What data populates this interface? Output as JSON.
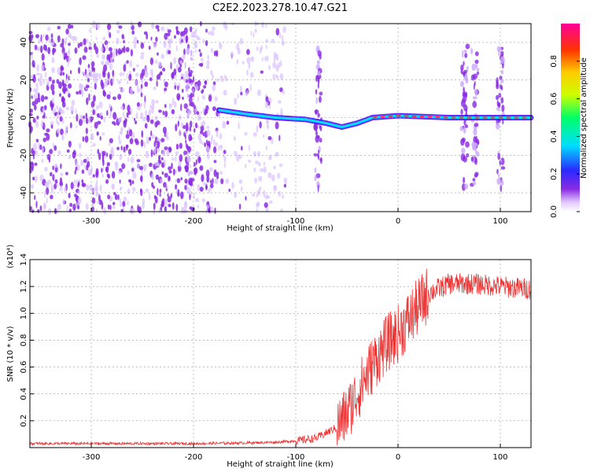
{
  "figure": {
    "title": "C2E2.2023.278.10.47.G21"
  },
  "chart_data": [
    {
      "type": "heatmap",
      "xlabel": "Height of straight line (km)",
      "ylabel": "Frequency (Hz)",
      "xlim": [
        -360,
        130
      ],
      "ylim": [
        -50,
        50
      ],
      "xticks": [
        -300,
        -200,
        -100,
        0,
        100
      ],
      "yticks": [
        -40,
        -20,
        0,
        20,
        40
      ],
      "grid": true,
      "colorbar": {
        "label": "Normalized spectral amplitude",
        "range": [
          0.0,
          1.0
        ],
        "ticks": [
          0.0,
          0.2,
          0.4,
          0.6,
          0.8
        ]
      },
      "features": {
        "noise_region_x": [
          -360,
          -110
        ],
        "dense_noise_x": [
          -360,
          -175
        ],
        "carrier_line": [
          {
            "x": -175,
            "y": 4
          },
          {
            "x": -150,
            "y": 2
          },
          {
            "x": -120,
            "y": 0
          },
          {
            "x": -90,
            "y": -1
          },
          {
            "x": -70,
            "y": -3
          },
          {
            "x": -55,
            "y": -5
          },
          {
            "x": -40,
            "y": -3
          },
          {
            "x": -25,
            "y": 0
          },
          {
            "x": 0,
            "y": 1
          },
          {
            "x": 50,
            "y": 0
          },
          {
            "x": 130,
            "y": 0
          }
        ],
        "vertical_bands_x": [
          -205,
          -78,
          65,
          75,
          100
        ]
      }
    },
    {
      "type": "line",
      "xlabel": "Height of straight line (km)",
      "ylabel": "SNR (10 * v/v)",
      "yscale_label": "(x10⁴)",
      "xlim": [
        -360,
        130
      ],
      "ylim": [
        0,
        1.4
      ],
      "xticks": [
        -300,
        -200,
        -100,
        0,
        100
      ],
      "yticks": [
        0.2,
        0.4,
        0.6,
        0.8,
        1.0,
        1.2,
        1.4
      ],
      "grid": true,
      "color": "#ee3333",
      "series": [
        {
          "x": [
            -360,
            -300,
            -200,
            -150,
            -120,
            -100,
            -80,
            -60,
            -50,
            -40,
            -30,
            -20,
            -10,
            0,
            10,
            20,
            30,
            50,
            75,
            100,
            130
          ],
          "values": [
            0.03,
            0.03,
            0.03,
            0.035,
            0.04,
            0.05,
            0.07,
            0.15,
            0.25,
            0.4,
            0.55,
            0.68,
            0.78,
            0.85,
            0.95,
            1.05,
            1.15,
            1.22,
            1.22,
            1.2,
            1.18
          ]
        }
      ]
    }
  ]
}
